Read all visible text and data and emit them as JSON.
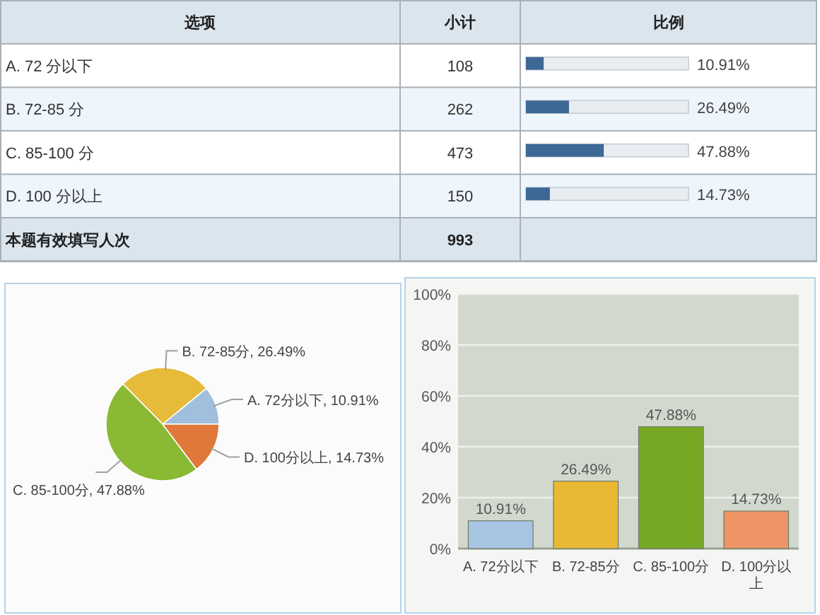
{
  "chart_data": [
    {
      "type": "bar",
      "orientation": "horizontal",
      "ylabel": "选项",
      "xlabel": "比例",
      "categories": [
        "A. 72 分以下",
        "B. 72-85 分",
        "C. 85-100 分",
        "D. 100 分以上"
      ],
      "values": [
        10.91,
        26.49,
        47.88,
        14.73
      ],
      "value_labels": [
        "10.91%",
        "26.49%",
        "47.88%",
        "14.73%"
      ],
      "color": "#3d6896",
      "xlim": [
        0,
        100
      ],
      "tick_labels": "y",
      "annotations": [
        "小计",
        "108",
        "262",
        "473",
        "150",
        "本题有效填写人次",
        "993"
      ]
    },
    {
      "type": "pie",
      "categories": [
        "A. 72分以下",
        "B. 72-85分",
        "C. 85-100分",
        "D. 100分以上"
      ],
      "values": [
        10.91,
        26.49,
        47.88,
        14.73
      ],
      "value_labels": [
        "10.91%",
        "26.49%",
        "47.88%",
        "14.73%"
      ],
      "colors": [
        "#9fbfdc",
        "#e6bb3a",
        "#8ab934",
        "#e0783a"
      ]
    },
    {
      "type": "bar",
      "categories": [
        "A. 72分以下",
        "B. 72-85分",
        "C. 85-100分",
        "D. 100分以上"
      ],
      "values": [
        10.91,
        26.49,
        47.88,
        14.73
      ],
      "value_labels": [
        "10.91%",
        "26.49%",
        "47.88%",
        "14.73%"
      ],
      "colors": [
        "#a8c6e4",
        "#e9b935",
        "#77a824",
        "#ee9566"
      ],
      "ylim": [
        0,
        100
      ],
      "yticks": [
        {
          "value": 0,
          "label": "0%"
        },
        {
          "value": 20,
          "label": "20%"
        },
        {
          "value": 40,
          "label": "40%"
        },
        {
          "value": 60,
          "label": "60%"
        },
        {
          "value": 80,
          "label": "80%"
        },
        {
          "value": 100,
          "label": "100%"
        }
      ],
      "grid": "y"
    }
  ]
}
